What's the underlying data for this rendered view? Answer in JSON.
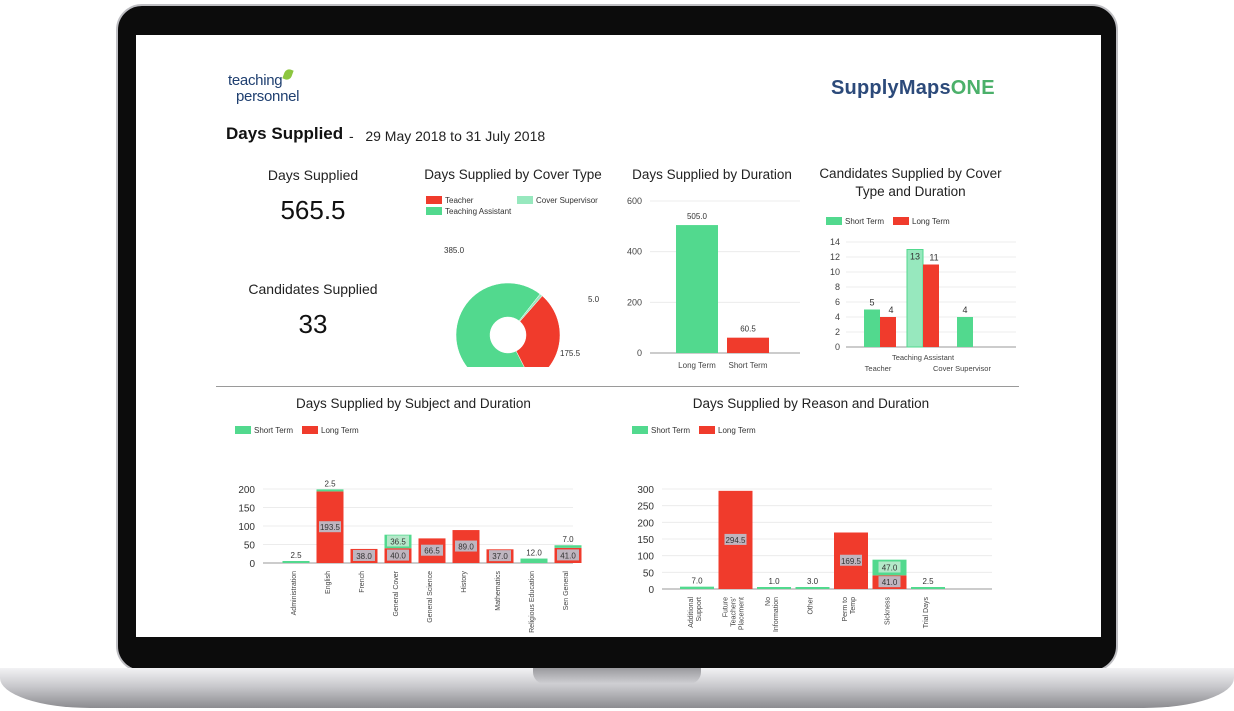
{
  "brand": {
    "left_logo": [
      "teaching",
      "personnel"
    ],
    "right_logo_a": "SupplyMaps",
    "right_logo_b": "ONE"
  },
  "header": {
    "title": "Days Supplied",
    "separator": "-",
    "date_range": "29 May 2018 to 31 July 2018"
  },
  "kpis": {
    "days_label": "Days Supplied",
    "days_value": "565.5",
    "candidates_label": "Candidates Supplied",
    "candidates_value": "33"
  },
  "colors": {
    "teacher": "#f03b2c",
    "teaching_assistant": "#52d98e",
    "cover_supervisor": "#97e8be",
    "short_term": "#52d98e",
    "long_term": "#f03b2c"
  },
  "chart_data": [
    {
      "type": "pie",
      "title": "Days Supplied by Cover Type",
      "legend": [
        "Teacher",
        "Cover Supervisor",
        "Teaching Assistant"
      ],
      "slices": [
        {
          "name": "Teaching Assistant",
          "value": 385.0,
          "label": "385.0"
        },
        {
          "name": "Cover Supervisor",
          "value": 5.0,
          "label": "5.0"
        },
        {
          "name": "Teacher",
          "value": 175.5,
          "label": "175.5"
        }
      ]
    },
    {
      "type": "bar",
      "title": "Days Supplied by Duration",
      "categories": [
        "Long Term",
        "Short Term"
      ],
      "values": [
        505.0,
        60.5
      ],
      "labels": [
        "505.0",
        "60.5"
      ],
      "yticks": [
        "0",
        "200",
        "400",
        "600"
      ],
      "ylim": [
        0,
        600
      ]
    },
    {
      "type": "bar",
      "title": "Candidates Supplied by Cover Type and Duration",
      "categories": [
        "Teacher",
        "Teaching Assistant",
        "Cover Supervisor"
      ],
      "series": [
        {
          "name": "Short Term",
          "values": [
            5,
            13,
            4
          ]
        },
        {
          "name": "Long Term",
          "values": [
            4,
            11,
            0
          ]
        }
      ],
      "yticks": [
        "0",
        "2",
        "4",
        "6",
        "8",
        "10",
        "12",
        "14"
      ],
      "ylim": [
        0,
        14
      ]
    },
    {
      "type": "bar",
      "title": "Days Supplied by Subject and Duration",
      "categories": [
        "Administration",
        "English",
        "French",
        "General Cover",
        "General Science",
        "History",
        "Mathematics",
        "Religious Education",
        "Sen General"
      ],
      "series": [
        {
          "name": "Short Term",
          "values": [
            2.5,
            2.5,
            0,
            36.5,
            0,
            0,
            0,
            12.0,
            7.0
          ]
        },
        {
          "name": "Long Term",
          "values": [
            0,
            193.5,
            38.0,
            40.0,
            66.5,
            89.0,
            37.0,
            0,
            41.0
          ]
        }
      ],
      "short_labels": [
        "2.5",
        "2.5",
        "",
        "36.5",
        "",
        "",
        "",
        "12.0",
        "7.0"
      ],
      "long_labels": [
        "",
        "193.5",
        "38.0",
        "40.0",
        "66.5",
        "89.0",
        "37.0",
        "",
        "41.0"
      ],
      "yticks": [
        "0",
        "50",
        "100",
        "150",
        "200"
      ],
      "ylim": [
        0,
        200
      ]
    },
    {
      "type": "bar",
      "title": "Days Supplied by Reason and Duration",
      "categories": [
        [
          "Additional",
          "Support"
        ],
        [
          "Future",
          "Teachers'",
          "Placement"
        ],
        [
          "No",
          "Information"
        ],
        [
          "Other"
        ],
        [
          "Perm to",
          "Temp"
        ],
        [
          "Sickness"
        ],
        [
          "Trial Days"
        ]
      ],
      "series": [
        {
          "name": "Short Term",
          "values": [
            7.0,
            0,
            1.0,
            3.0,
            0,
            47.0,
            2.5
          ]
        },
        {
          "name": "Long Term",
          "values": [
            0,
            294.5,
            0,
            0,
            169.5,
            41.0,
            0
          ]
        }
      ],
      "short_labels": [
        "7.0",
        "",
        "1.0",
        "3.0",
        "",
        "47.0",
        "2.5"
      ],
      "long_labels": [
        "",
        "294.5",
        "",
        "",
        "169.5",
        "41.0",
        ""
      ],
      "yticks": [
        "0",
        "50",
        "100",
        "150",
        "200",
        "250",
        "300"
      ],
      "ylim": [
        0,
        300
      ]
    }
  ]
}
